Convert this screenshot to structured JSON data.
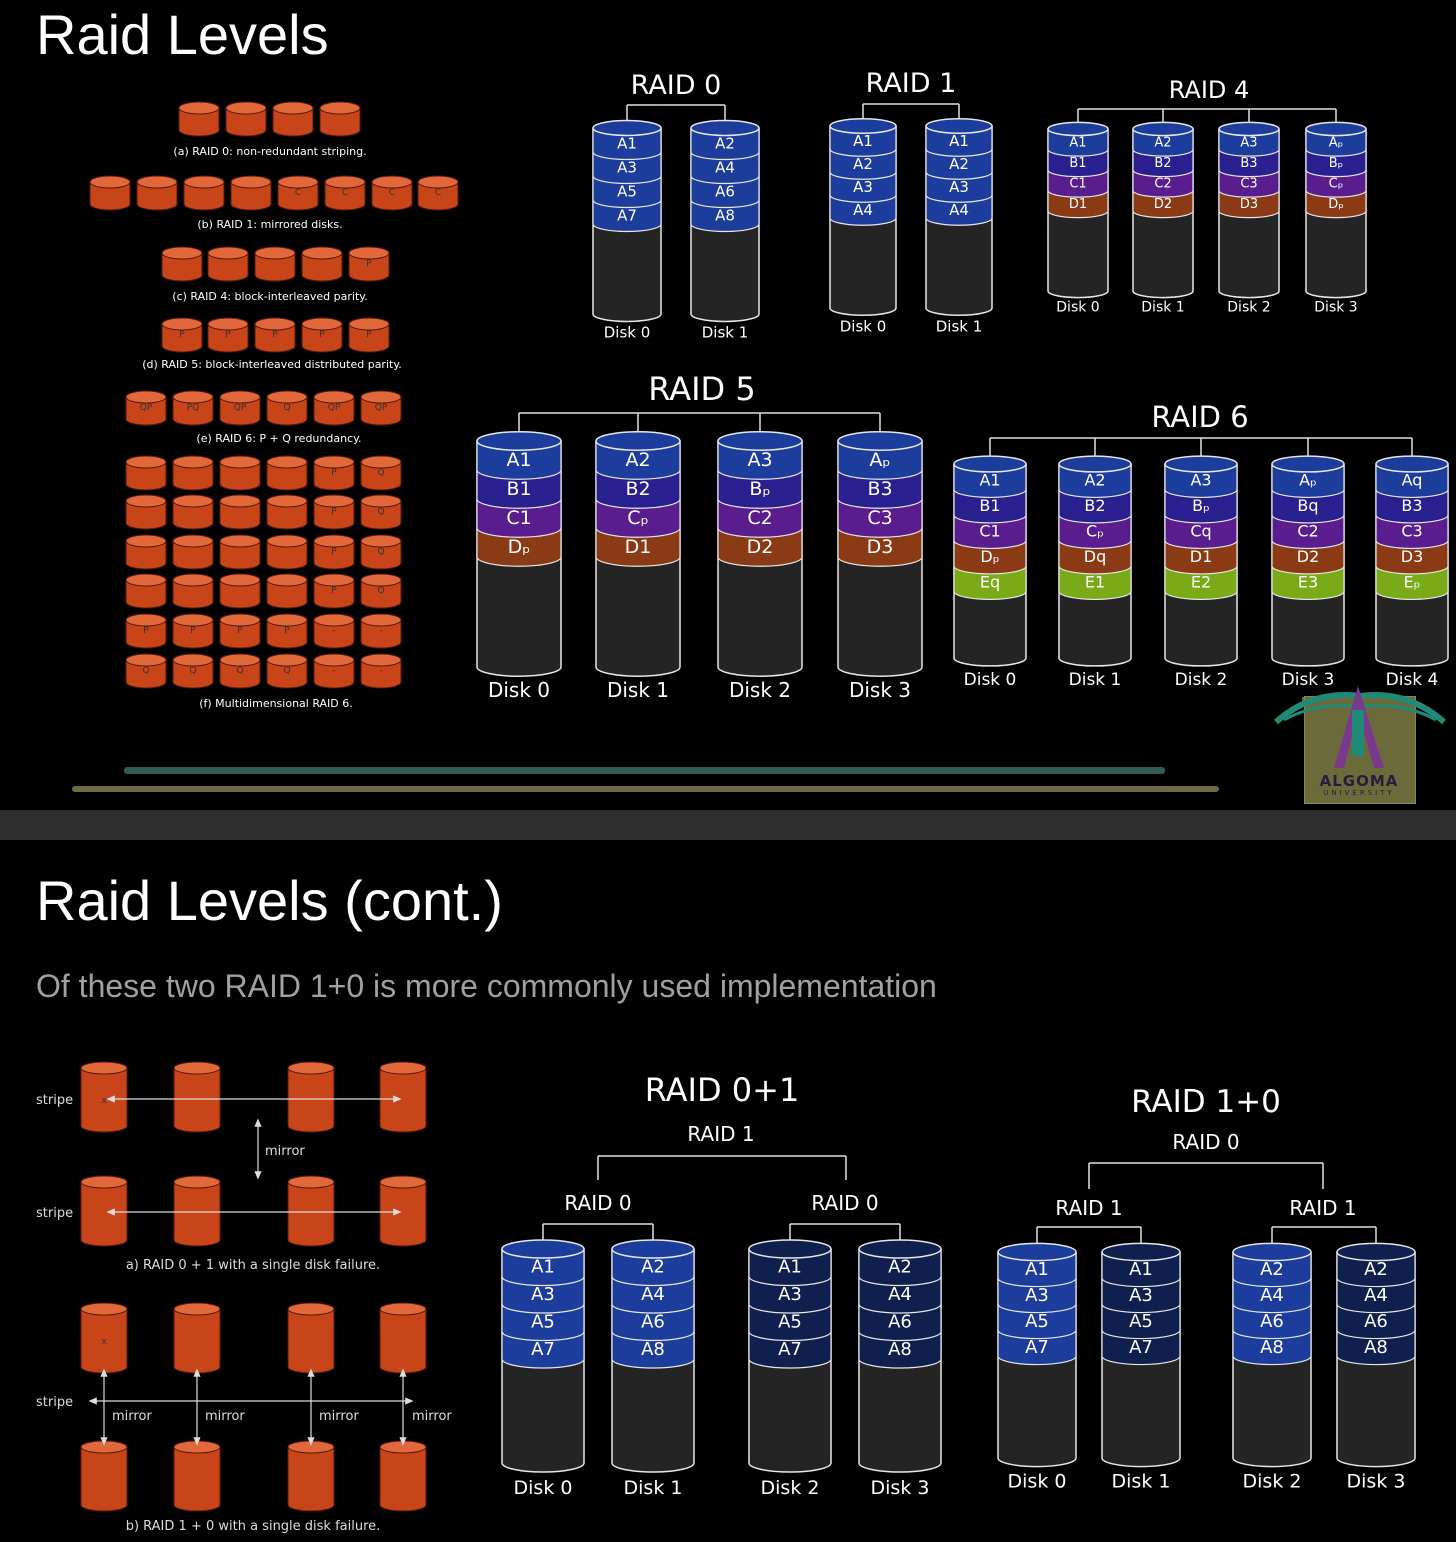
{
  "slide1": {
    "title": "Raid Levels",
    "figure_captions": [
      "(a) RAID 0: non-redundant striping.",
      "(b) RAID 1: mirrored disks.",
      "(c) RAID 4: block-interleaved parity.",
      "(d) RAID 5: block-interleaved distributed parity.",
      "(e) RAID 6: P + Q redundancy.",
      "(f) Multidimensional RAID 6."
    ],
    "raid0": {
      "title": "RAID 0",
      "disks": [
        {
          "label": "Disk 0",
          "blocks": [
            "A1",
            "A3",
            "A5",
            "A7"
          ]
        },
        {
          "label": "Disk 1",
          "blocks": [
            "A2",
            "A4",
            "A6",
            "A8"
          ]
        }
      ]
    },
    "raid1": {
      "title": "RAID 1",
      "disks": [
        {
          "label": "Disk 0",
          "blocks": [
            "A1",
            "A2",
            "A3",
            "A4"
          ]
        },
        {
          "label": "Disk 1",
          "blocks": [
            "A1",
            "A2",
            "A3",
            "A4"
          ]
        }
      ]
    },
    "raid4": {
      "title": "RAID 4",
      "disks": [
        {
          "label": "Disk 0",
          "blocks": [
            "A1",
            "B1",
            "C1",
            "D1"
          ]
        },
        {
          "label": "Disk 1",
          "blocks": [
            "A2",
            "B2",
            "C2",
            "D2"
          ]
        },
        {
          "label": "Disk 2",
          "blocks": [
            "A3",
            "B3",
            "C3",
            "D3"
          ]
        },
        {
          "label": "Disk 3",
          "blocks": [
            "Aₚ",
            "Bₚ",
            "Cₚ",
            "Dₚ"
          ]
        }
      ]
    },
    "raid5": {
      "title": "RAID 5",
      "disks": [
        {
          "label": "Disk 0",
          "blocks": [
            "A1",
            "B1",
            "C1",
            "Dₚ"
          ]
        },
        {
          "label": "Disk 1",
          "blocks": [
            "A2",
            "B2",
            "Cₚ",
            "D1"
          ]
        },
        {
          "label": "Disk 2",
          "blocks": [
            "A3",
            "Bₚ",
            "C2",
            "D2"
          ]
        },
        {
          "label": "Disk 3",
          "blocks": [
            "Aₚ",
            "B3",
            "C3",
            "D3"
          ]
        }
      ]
    },
    "raid6": {
      "title": "RAID 6",
      "disks": [
        {
          "label": "Disk 0",
          "blocks": [
            "A1",
            "B1",
            "C1",
            "Dₚ",
            "E_q"
          ]
        },
        {
          "label": "Disk 1",
          "blocks": [
            "A2",
            "B2",
            "Cₚ",
            "D_q",
            "E1"
          ]
        },
        {
          "label": "Disk 2",
          "blocks": [
            "A3",
            "Bₚ",
            "C_q",
            "D1",
            "E2"
          ]
        },
        {
          "label": "Disk 3",
          "blocks": [
            "Aₚ",
            "B_q",
            "C2",
            "D2",
            "E3"
          ]
        },
        {
          "label": "Disk 4",
          "blocks": [
            "A_q",
            "B3",
            "C3",
            "D3",
            "Eₚ"
          ]
        }
      ]
    },
    "logo": {
      "word": "ALGOMA",
      "sub": "UNIVERSITY"
    }
  },
  "slide2": {
    "title": "Raid Levels (cont.)",
    "subtitle": "Of these two RAID 1+0 is more commonly used implementation",
    "figure": {
      "stripe": "stripe",
      "mirror": "mirror",
      "fail_mark": "x",
      "caption_a": "a) RAID 0 + 1 with a single disk failure.",
      "caption_b": "b) RAID 1 + 0 with a single disk failure."
    },
    "raid01": {
      "title": "RAID 0+1",
      "top": "RAID 1",
      "sub": "RAID 0",
      "disks": [
        {
          "label": "Disk 0",
          "blocks": [
            "A1",
            "A3",
            "A5",
            "A7"
          ]
        },
        {
          "label": "Disk 1",
          "blocks": [
            "A2",
            "A4",
            "A6",
            "A8"
          ]
        },
        {
          "label": "Disk 2",
          "blocks": [
            "A1",
            "A3",
            "A5",
            "A7"
          ]
        },
        {
          "label": "Disk 3",
          "blocks": [
            "A2",
            "A4",
            "A6",
            "A8"
          ]
        }
      ]
    },
    "raid10": {
      "title": "RAID 1+0",
      "top": "RAID 0",
      "sub": "RAID 1",
      "disks": [
        {
          "label": "Disk 0",
          "blocks": [
            "A1",
            "A3",
            "A5",
            "A7"
          ]
        },
        {
          "label": "Disk 1",
          "blocks": [
            "A1",
            "A3",
            "A5",
            "A7"
          ]
        },
        {
          "label": "Disk 2",
          "blocks": [
            "A2",
            "A4",
            "A6",
            "A8"
          ]
        },
        {
          "label": "Disk 3",
          "blocks": [
            "A2",
            "A4",
            "A6",
            "A8"
          ]
        }
      ]
    }
  },
  "colors": {
    "blueA": "#1d3d9c",
    "navyB": "#2a1f8e",
    "purpleC": "#5a1d8e",
    "brownD": "#8a3a14",
    "greenE": "#7aaa18",
    "darkNavy": "#0f1f4e",
    "diskBody": "#242424",
    "diskOrange": "#c8451a"
  }
}
